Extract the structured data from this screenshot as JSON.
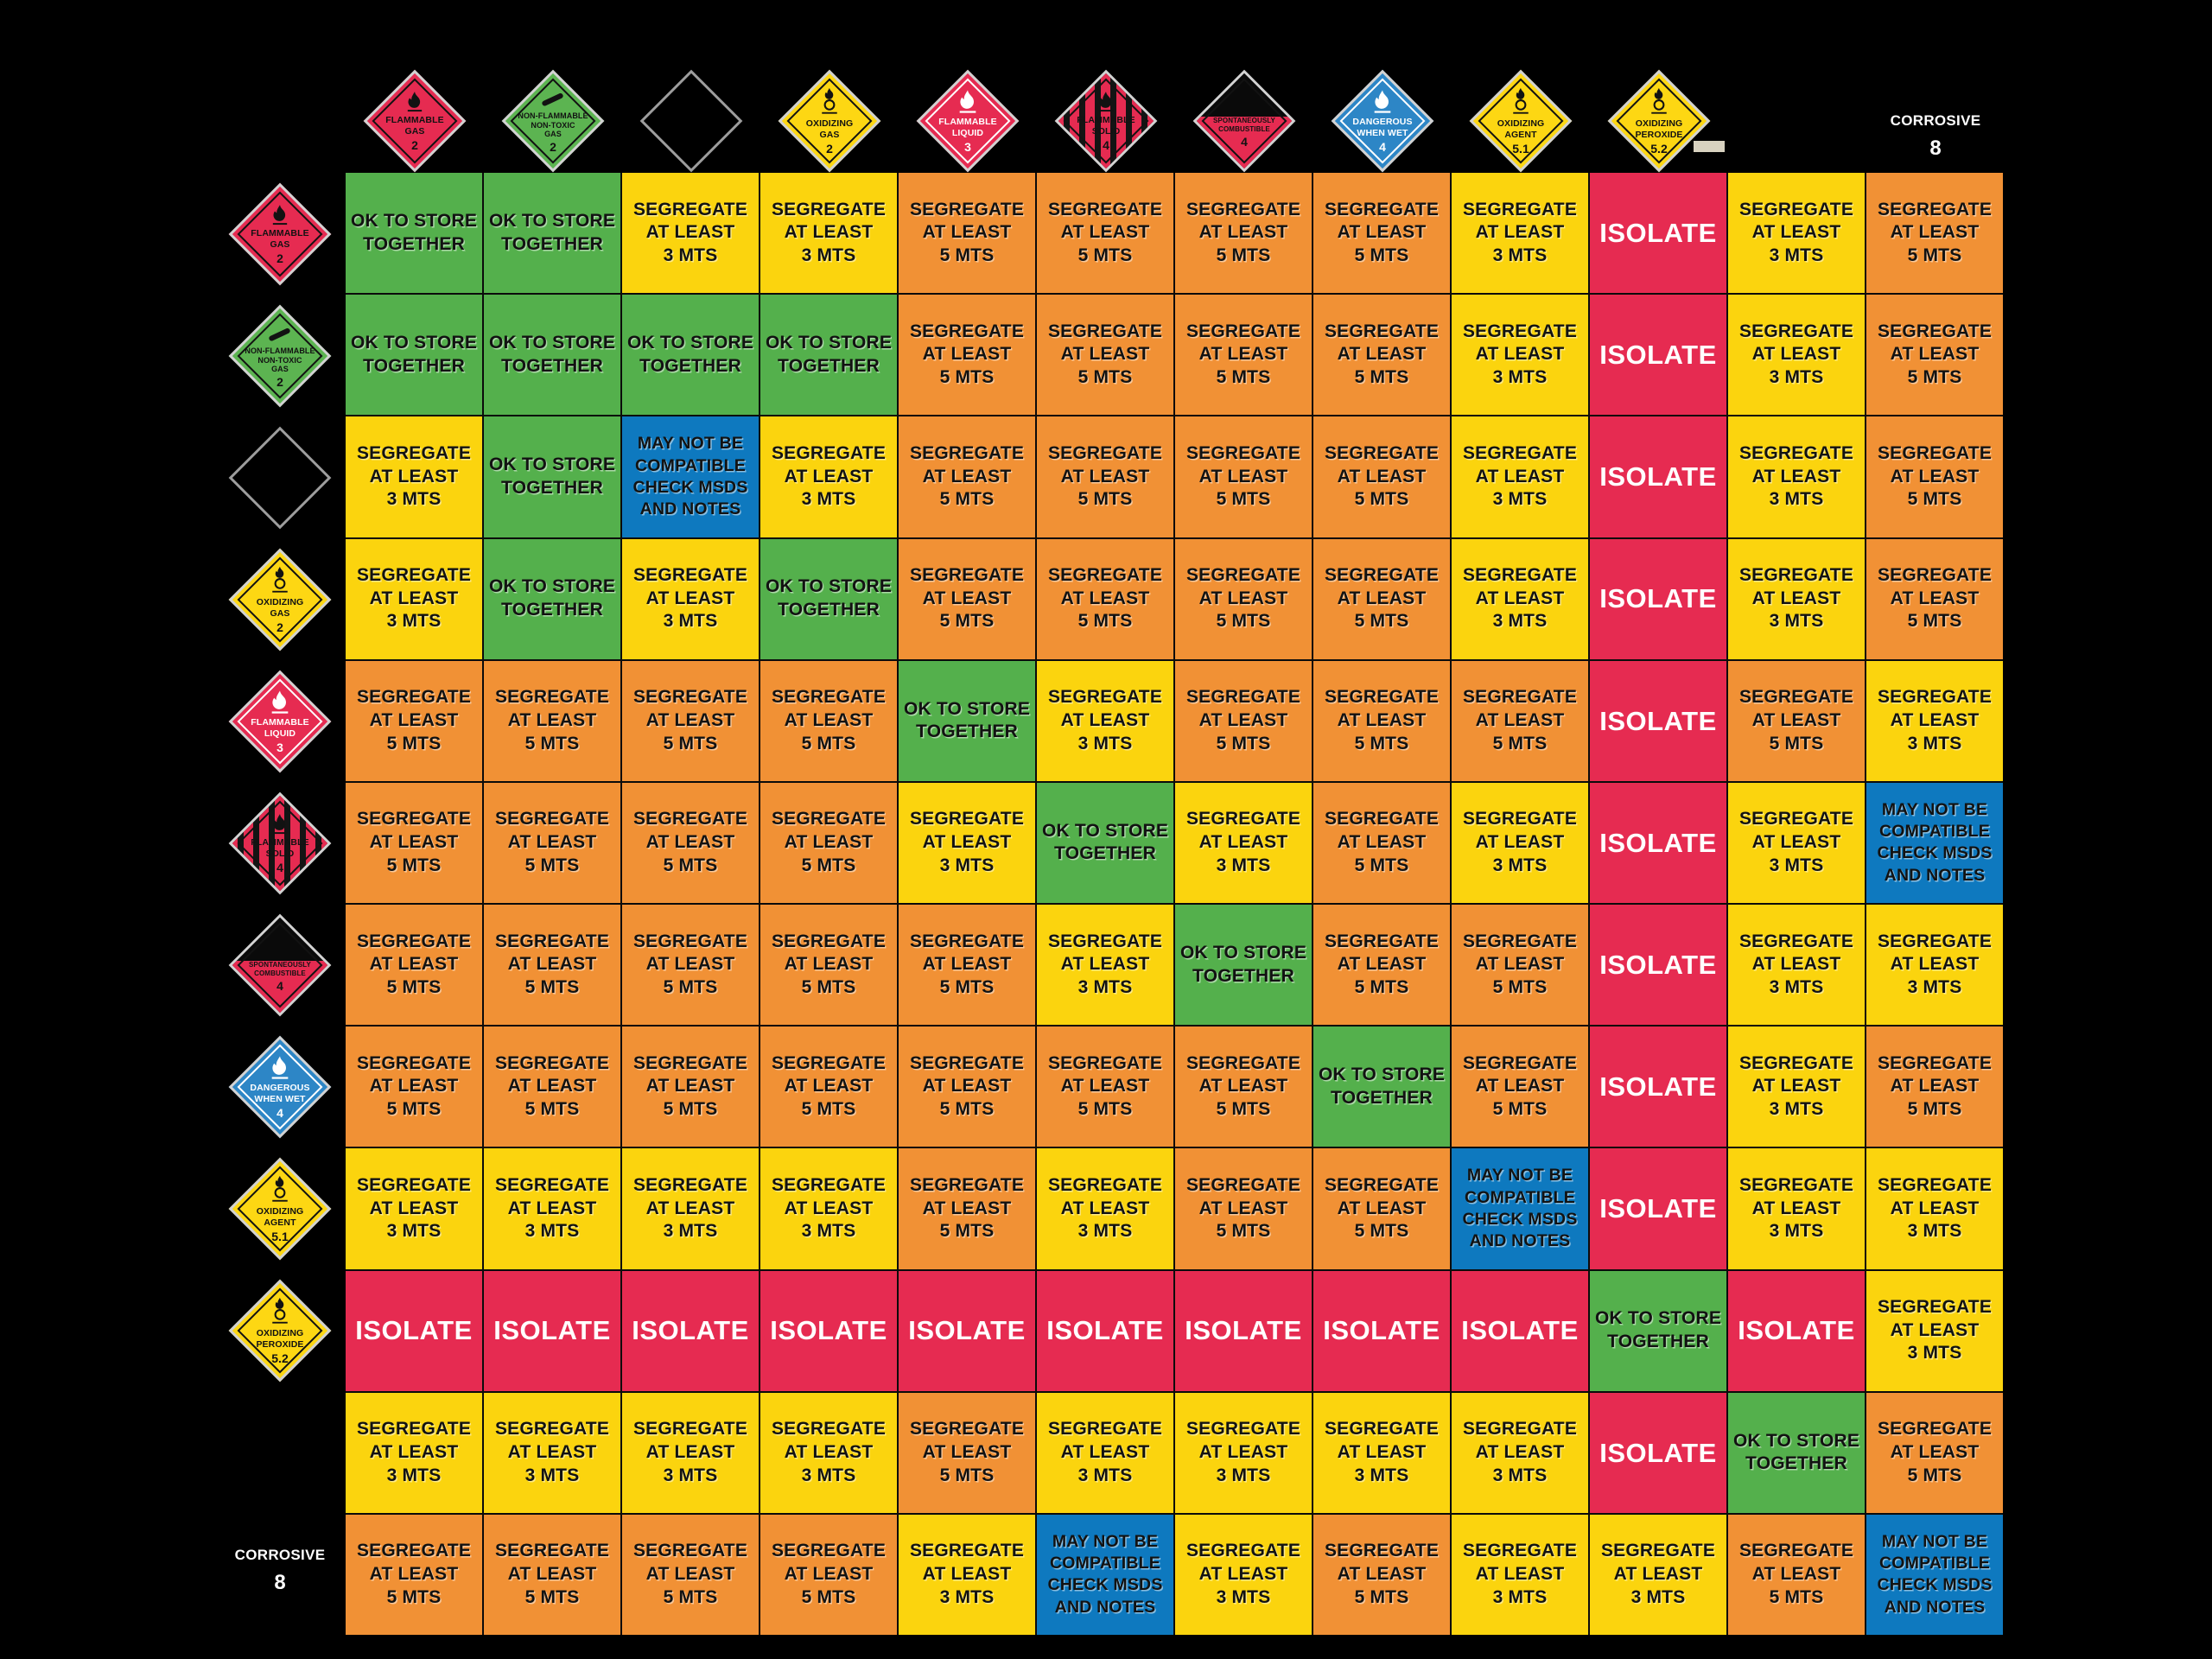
{
  "accent_colors": {
    "cell_green": "#54b04c",
    "cell_yellow": "#fbd40e",
    "cell_orange": "#f19135",
    "cell_red": "#e62b51",
    "cell_blue": "#0e79bf",
    "background": "#000000",
    "placard_yellow": "#fdd713",
    "placard_green": "#5cb451",
    "placard_red": "#e62b51",
    "placard_blue": "#2d86c6"
  },
  "hazard_classes": [
    {
      "id": "flammable-gas",
      "name": "Flammable Gas",
      "lines": [
        "FLAMMABLE",
        "GAS"
      ],
      "class_no": "2",
      "render": "diamond",
      "variant": "solid",
      "bg": "#e62b51",
      "fg": "#121212",
      "icon": "flame"
    },
    {
      "id": "non-flammable-non-toxic-gas",
      "name": "Non-Flammable Non-Toxic Gas",
      "lines": [
        "NON-FLAMMABLE",
        "NON-TOXIC",
        "GAS"
      ],
      "class_no": "2",
      "render": "diamond",
      "variant": "solid",
      "bg": "#5cb451",
      "fg": "#121212",
      "icon": "cylinder",
      "size": "small"
    },
    {
      "id": "blank-black-placard",
      "name": "blank black placard",
      "lines": [],
      "class_no": "",
      "render": "diamond",
      "variant": "blank",
      "bg": "#000000",
      "fg": "#000000",
      "icon": "none"
    },
    {
      "id": "oxidizing-gas",
      "name": "Oxidizing Gas",
      "lines": [
        "OXIDIZING",
        "GAS"
      ],
      "class_no": "2",
      "render": "diamond",
      "variant": "solid",
      "bg": "#fdd713",
      "fg": "#121212",
      "icon": "flame-circle"
    },
    {
      "id": "flammable-liquid",
      "name": "Flammable Liquid",
      "lines": [
        "FLAMMABLE",
        "LIQUID"
      ],
      "class_no": "3",
      "render": "diamond",
      "variant": "solid",
      "bg": "#e62b51",
      "fg": "#ffffff",
      "icon": "flame-white"
    },
    {
      "id": "flammable-solid",
      "name": "Flammable Solid",
      "lines": [
        "FLAMMABLE",
        "SOLID"
      ],
      "class_no": "4",
      "render": "diamond",
      "variant": "striped",
      "bg": "",
      "fg": "#121212",
      "icon": "flame"
    },
    {
      "id": "spontaneously-combustible",
      "name": "Spontaneously Combustible",
      "lines": [
        "SPONTANEOUSLY",
        "COMBUSTIBLE"
      ],
      "class_no": "4",
      "render": "diamond",
      "variant": "split",
      "bg": "",
      "fg": "#121212",
      "icon": "none",
      "size": "tiny"
    },
    {
      "id": "dangerous-when-wet",
      "name": "Dangerous When Wet",
      "lines": [
        "DANGEROUS",
        "WHEN WET"
      ],
      "class_no": "4",
      "render": "diamond",
      "variant": "solid",
      "bg": "#2d86c6",
      "fg": "#ffffff",
      "icon": "flame-white"
    },
    {
      "id": "oxidizing-agent",
      "name": "Oxidizing Agent",
      "lines": [
        "OXIDIZING",
        "AGENT"
      ],
      "class_no": "5.1",
      "render": "diamond",
      "variant": "solid",
      "bg": "#fdd713",
      "fg": "#121212",
      "icon": "flame-circle"
    },
    {
      "id": "oxidizing-peroxide",
      "name": "Oxidizing Peroxide",
      "lines": [
        "OXIDIZING",
        "PEROXIDE"
      ],
      "class_no": "5.2",
      "render": "diamond",
      "variant": "solid",
      "bg": "#fdd713",
      "fg": "#121212",
      "icon": "flame-circle"
    },
    {
      "id": "not-visible",
      "name": "not visible",
      "lines": [],
      "class_no": "",
      "render": "none"
    },
    {
      "id": "corrosive",
      "name": "Corrosive",
      "lines": [
        "CORROSIVE"
      ],
      "class_no": "8",
      "render": "text",
      "fg": "#ffffff"
    }
  ],
  "chart_data": {
    "type": "heatmap",
    "columns": [
      "flammable-gas",
      "non-flammable-non-toxic-gas",
      "blank-black-placard",
      "oxidizing-gas",
      "flammable-liquid",
      "flammable-solid",
      "spontaneously-combustible",
      "dangerous-when-wet",
      "oxidizing-agent",
      "oxidizing-peroxide",
      "not-visible",
      "corrosive"
    ],
    "rows": [
      "flammable-gas",
      "non-flammable-non-toxic-gas",
      "blank-black-placard",
      "oxidizing-gas",
      "flammable-liquid",
      "flammable-solid",
      "spontaneously-combustible",
      "dangerous-when-wet",
      "oxidizing-agent",
      "oxidizing-peroxide",
      "not-visible",
      "corrosive"
    ],
    "codes": {
      "OK": {
        "name": "ok-to-store-together",
        "lines": [
          "OK TO STORE",
          "TOGETHER"
        ],
        "bg": "#54b04c",
        "fg": "#121212"
      },
      "S3": {
        "name": "segregate-at-least-3-mts",
        "lines": [
          "SEGREGATE",
          "AT LEAST",
          "3 MTS"
        ],
        "bg": "#fbd40e",
        "fg": "#121212"
      },
      "S5": {
        "name": "segregate-at-least-5-mts",
        "lines": [
          "SEGREGATE",
          "AT LEAST",
          "5 MTS"
        ],
        "bg": "#f19135",
        "fg": "#121212"
      },
      "ISO": {
        "name": "isolate",
        "lines": [
          "ISOLATE"
        ],
        "bg": "#e62b51",
        "fg": "#ffffff"
      },
      "MNB": {
        "name": "may-not-be-compatible",
        "lines": [
          "MAY NOT BE",
          "COMPATIBLE",
          "CHECK MSDS",
          "AND NOTES"
        ],
        "bg": "#0e79bf",
        "fg": "#121212"
      }
    },
    "cells": [
      [
        "OK",
        "OK",
        "S3",
        "S3",
        "S5",
        "S5",
        "S5",
        "S5",
        "S3",
        "ISO",
        "S3",
        "S5"
      ],
      [
        "OK",
        "OK",
        "OK",
        "OK",
        "S5",
        "S5",
        "S5",
        "S5",
        "S3",
        "ISO",
        "S3",
        "S5"
      ],
      [
        "S3",
        "OK",
        "MNB",
        "S3",
        "S5",
        "S5",
        "S5",
        "S5",
        "S3",
        "ISO",
        "S3",
        "S5"
      ],
      [
        "S3",
        "OK",
        "S3",
        "OK",
        "S5",
        "S5",
        "S5",
        "S5",
        "S3",
        "ISO",
        "S3",
        "S5"
      ],
      [
        "S5",
        "S5",
        "S5",
        "S5",
        "OK",
        "S3",
        "S5",
        "S5",
        "S5",
        "ISO",
        "S5",
        "S3"
      ],
      [
        "S5",
        "S5",
        "S5",
        "S5",
        "S3",
        "OK",
        "S3",
        "S5",
        "S3",
        "ISO",
        "S3",
        "MNB"
      ],
      [
        "S5",
        "S5",
        "S5",
        "S5",
        "S5",
        "S3",
        "OK",
        "S5",
        "S5",
        "ISO",
        "S3",
        "S3"
      ],
      [
        "S5",
        "S5",
        "S5",
        "S5",
        "S5",
        "S5",
        "S5",
        "OK",
        "S5",
        "ISO",
        "S3",
        "S5"
      ],
      [
        "S3",
        "S3",
        "S3",
        "S3",
        "S5",
        "S3",
        "S5",
        "S5",
        "MNB",
        "ISO",
        "S3",
        "S3"
      ],
      [
        "ISO",
        "ISO",
        "ISO",
        "ISO",
        "ISO",
        "ISO",
        "ISO",
        "ISO",
        "ISO",
        "OK",
        "ISO",
        "S3"
      ],
      [
        "S3",
        "S3",
        "S3",
        "S3",
        "S5",
        "S3",
        "S3",
        "S3",
        "S3",
        "ISO",
        "OK",
        "S5"
      ],
      [
        "S5",
        "S5",
        "S5",
        "S5",
        "S3",
        "MNB",
        "S3",
        "S5",
        "S3",
        "S3",
        "S5",
        "MNB"
      ]
    ],
    "grid_on": true,
    "legend_position": "none"
  }
}
